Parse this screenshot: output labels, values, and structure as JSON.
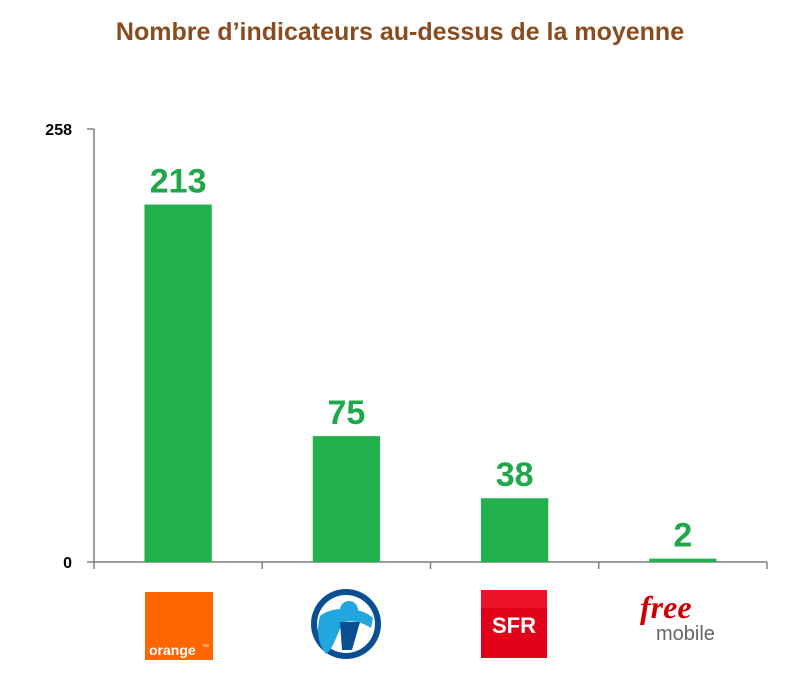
{
  "chart_data": {
    "type": "bar",
    "title": "Nombre d’indicateurs au-dessus de la moyenne",
    "categories": [
      "orange",
      "bouygues",
      "SFR",
      "free mobile"
    ],
    "values": [
      213,
      75,
      38,
      2
    ],
    "data_labels": [
      "213",
      "75",
      "38",
      "2"
    ],
    "xlabel": "",
    "ylabel": "",
    "ylim": [
      0,
      258
    ],
    "yticks": [
      "0",
      "258"
    ],
    "grid": false,
    "legend": "none"
  },
  "logos": {
    "orange": {
      "text": "orange",
      "mark": "™",
      "color": "#ff6600"
    },
    "bouygues": {
      "color_dark": "#0a4f8f",
      "color_light": "#22a6e0"
    },
    "sfr": {
      "text": "SFR",
      "color": "#e2001a"
    },
    "free": {
      "line1": "free",
      "line2": "mobile",
      "color_red": "#cc0000",
      "color_gray": "#666666"
    }
  },
  "colors": {
    "bar": "#22b14c",
    "label": "#1ea84a",
    "axis": "#7f7f7f",
    "title": "#8a4b1f"
  }
}
